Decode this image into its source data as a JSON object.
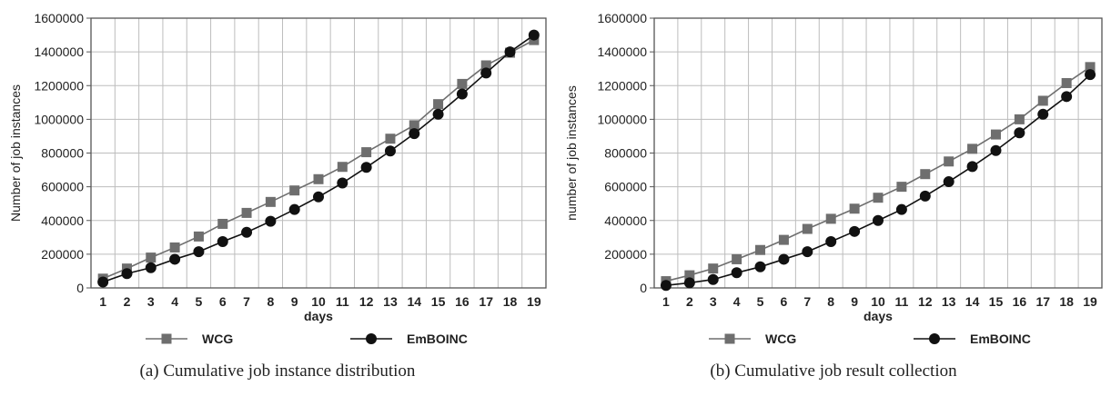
{
  "chart_data": [
    {
      "type": "line",
      "caption": "(a)  Cumulative job instance distribution",
      "xlabel": "days",
      "ylabel": "Number of job instances",
      "categories": [
        "1",
        "2",
        "3",
        "4",
        "5",
        "6",
        "7",
        "8",
        "9",
        "10",
        "11",
        "12",
        "13",
        "14",
        "15",
        "16",
        "17",
        "18",
        "19"
      ],
      "ylim": [
        0,
        1600000
      ],
      "yticks": [
        "0",
        "200000",
        "400000",
        "600000",
        "800000",
        "1000000",
        "1200000",
        "1400000",
        "1600000"
      ],
      "grid": true,
      "legend_position": "bottom",
      "series": [
        {
          "name": "WCG",
          "marker": "square",
          "color": "#6e6e6e",
          "values": [
            55000,
            115000,
            180000,
            240000,
            305000,
            380000,
            445000,
            510000,
            578000,
            645000,
            718000,
            805000,
            885000,
            965000,
            1090000,
            1210000,
            1320000,
            1395000,
            1470000
          ]
        },
        {
          "name": "EmBOINC",
          "marker": "circle",
          "color": "#111111",
          "values": [
            35000,
            85000,
            120000,
            170000,
            215000,
            275000,
            330000,
            395000,
            465000,
            540000,
            622000,
            715000,
            812000,
            915000,
            1030000,
            1150000,
            1275000,
            1400000,
            1500000
          ]
        }
      ]
    },
    {
      "type": "line",
      "caption": "(b)  Cumulative job result collection",
      "xlabel": "days",
      "ylabel": "number of  job instances",
      "categories": [
        "1",
        "2",
        "3",
        "4",
        "5",
        "6",
        "7",
        "8",
        "9",
        "10",
        "11",
        "12",
        "13",
        "14",
        "15",
        "16",
        "17",
        "18",
        "19"
      ],
      "ylim": [
        0,
        1600000
      ],
      "yticks": [
        "0",
        "200000",
        "400000",
        "600000",
        "800000",
        "1000000",
        "1200000",
        "1400000",
        "1600000"
      ],
      "grid": true,
      "legend_position": "bottom",
      "series": [
        {
          "name": "WCG",
          "marker": "square",
          "color": "#6e6e6e",
          "values": [
            40000,
            75000,
            115000,
            170000,
            225000,
            285000,
            350000,
            410000,
            470000,
            535000,
            600000,
            675000,
            750000,
            825000,
            910000,
            1000000,
            1110000,
            1215000,
            1310000
          ]
        },
        {
          "name": "EmBOINC",
          "marker": "circle",
          "color": "#111111",
          "values": [
            15000,
            30000,
            50000,
            90000,
            125000,
            170000,
            215000,
            275000,
            335000,
            400000,
            465000,
            545000,
            630000,
            720000,
            815000,
            920000,
            1030000,
            1135000,
            1265000
          ]
        }
      ]
    }
  ]
}
